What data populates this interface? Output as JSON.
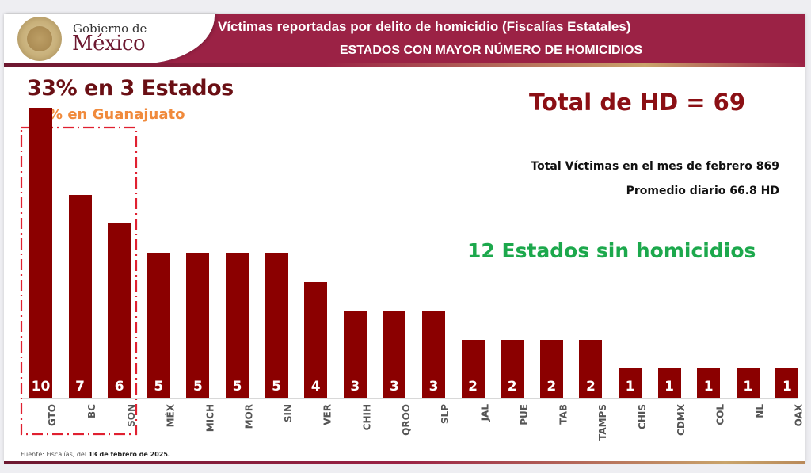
{
  "header": {
    "logo": "mexico-coat-of-arms",
    "gov_line1": "Gobierno de",
    "gov_line2": "México",
    "title": "Víctimas reportadas por delito de homicidio (Fiscalías Estatales)",
    "subtitle": "ESTADOS CON MAYOR NÚMERO DE HOMICIDIOS",
    "brand_color": "#9b2245"
  },
  "annotations": {
    "top_states": "33% en 3 Estados",
    "guanajuato": "15% en Guanajuato",
    "total_hd": "Total de HD = 69",
    "total_victims": "Total Víctimas en el mes de febrero 869",
    "daily_avg": "Promedio diario 66.8 HD",
    "no_homicides": "12 Estados sin homicidios"
  },
  "footer": {
    "source_prefix": "Fuente: Fiscalías, del ",
    "source_date": "13 de febrero de 2025."
  },
  "chart_data": {
    "type": "bar",
    "title": "Víctimas reportadas por delito de homicidio (Fiscalías Estatales) — Estados con mayor número de homicidios",
    "categories": [
      "GTO",
      "BC",
      "SON",
      "MÉX",
      "MICH",
      "MOR",
      "SIN",
      "VER",
      "CHIH",
      "QROO",
      "SLP",
      "JAL",
      "PUE",
      "TAB",
      "TAMPS",
      "CHIS",
      "CDMX",
      "COL",
      "NL",
      "OAX"
    ],
    "values": [
      10,
      7,
      6,
      5,
      5,
      5,
      5,
      4,
      3,
      3,
      3,
      2,
      2,
      2,
      2,
      1,
      1,
      1,
      1,
      1
    ],
    "xlabel": "",
    "ylabel": "",
    "ylim": [
      0,
      10
    ],
    "grid": false,
    "legend": null,
    "bar_color": "#8b0000",
    "highlighted_categories": [
      "GTO",
      "BC",
      "SON"
    ],
    "annotations": [
      "33% en 3 Estados",
      "15% en Guanajuato",
      "Total de HD = 69",
      "Total Víctimas en el mes de febrero 869",
      "Promedio diario 66.8 HD",
      "12 Estados sin homicidios"
    ]
  }
}
